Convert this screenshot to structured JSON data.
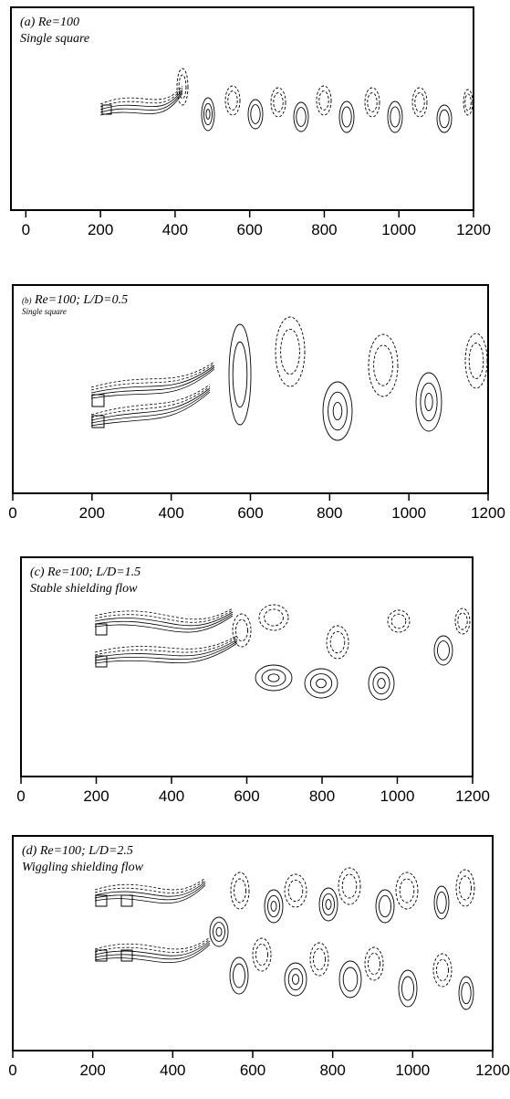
{
  "chart_data": [
    {
      "type": "contour",
      "panel_label": "(a)",
      "title": "Re=100",
      "subtitle": "Single square",
      "xlim": [
        -40,
        1200
      ],
      "xticks": [
        0,
        200,
        400,
        600,
        800,
        1000,
        1200
      ]
    },
    {
      "type": "contour",
      "panel_label": "(b)",
      "title": "Re=100; L/D=0.5",
      "subtitle": "Single square",
      "xlim": [
        0,
        1200
      ],
      "xticks": [
        0,
        200,
        400,
        600,
        800,
        1000,
        1200
      ]
    },
    {
      "type": "contour",
      "panel_label": "(c)",
      "title": "Re=100; L/D=1.5",
      "subtitle": "Stable shielding flow",
      "xlim": [
        0,
        1200
      ],
      "xticks": [
        0,
        200,
        400,
        600,
        800,
        1000,
        1200
      ]
    },
    {
      "type": "contour",
      "panel_label": "(d)",
      "title": "Re=100; L/D=2.5",
      "subtitle": "Wiggling shielding flow",
      "xlim": [
        0,
        1200
      ],
      "xticks": [
        0,
        200,
        400,
        600,
        800,
        1000,
        1200
      ]
    }
  ]
}
